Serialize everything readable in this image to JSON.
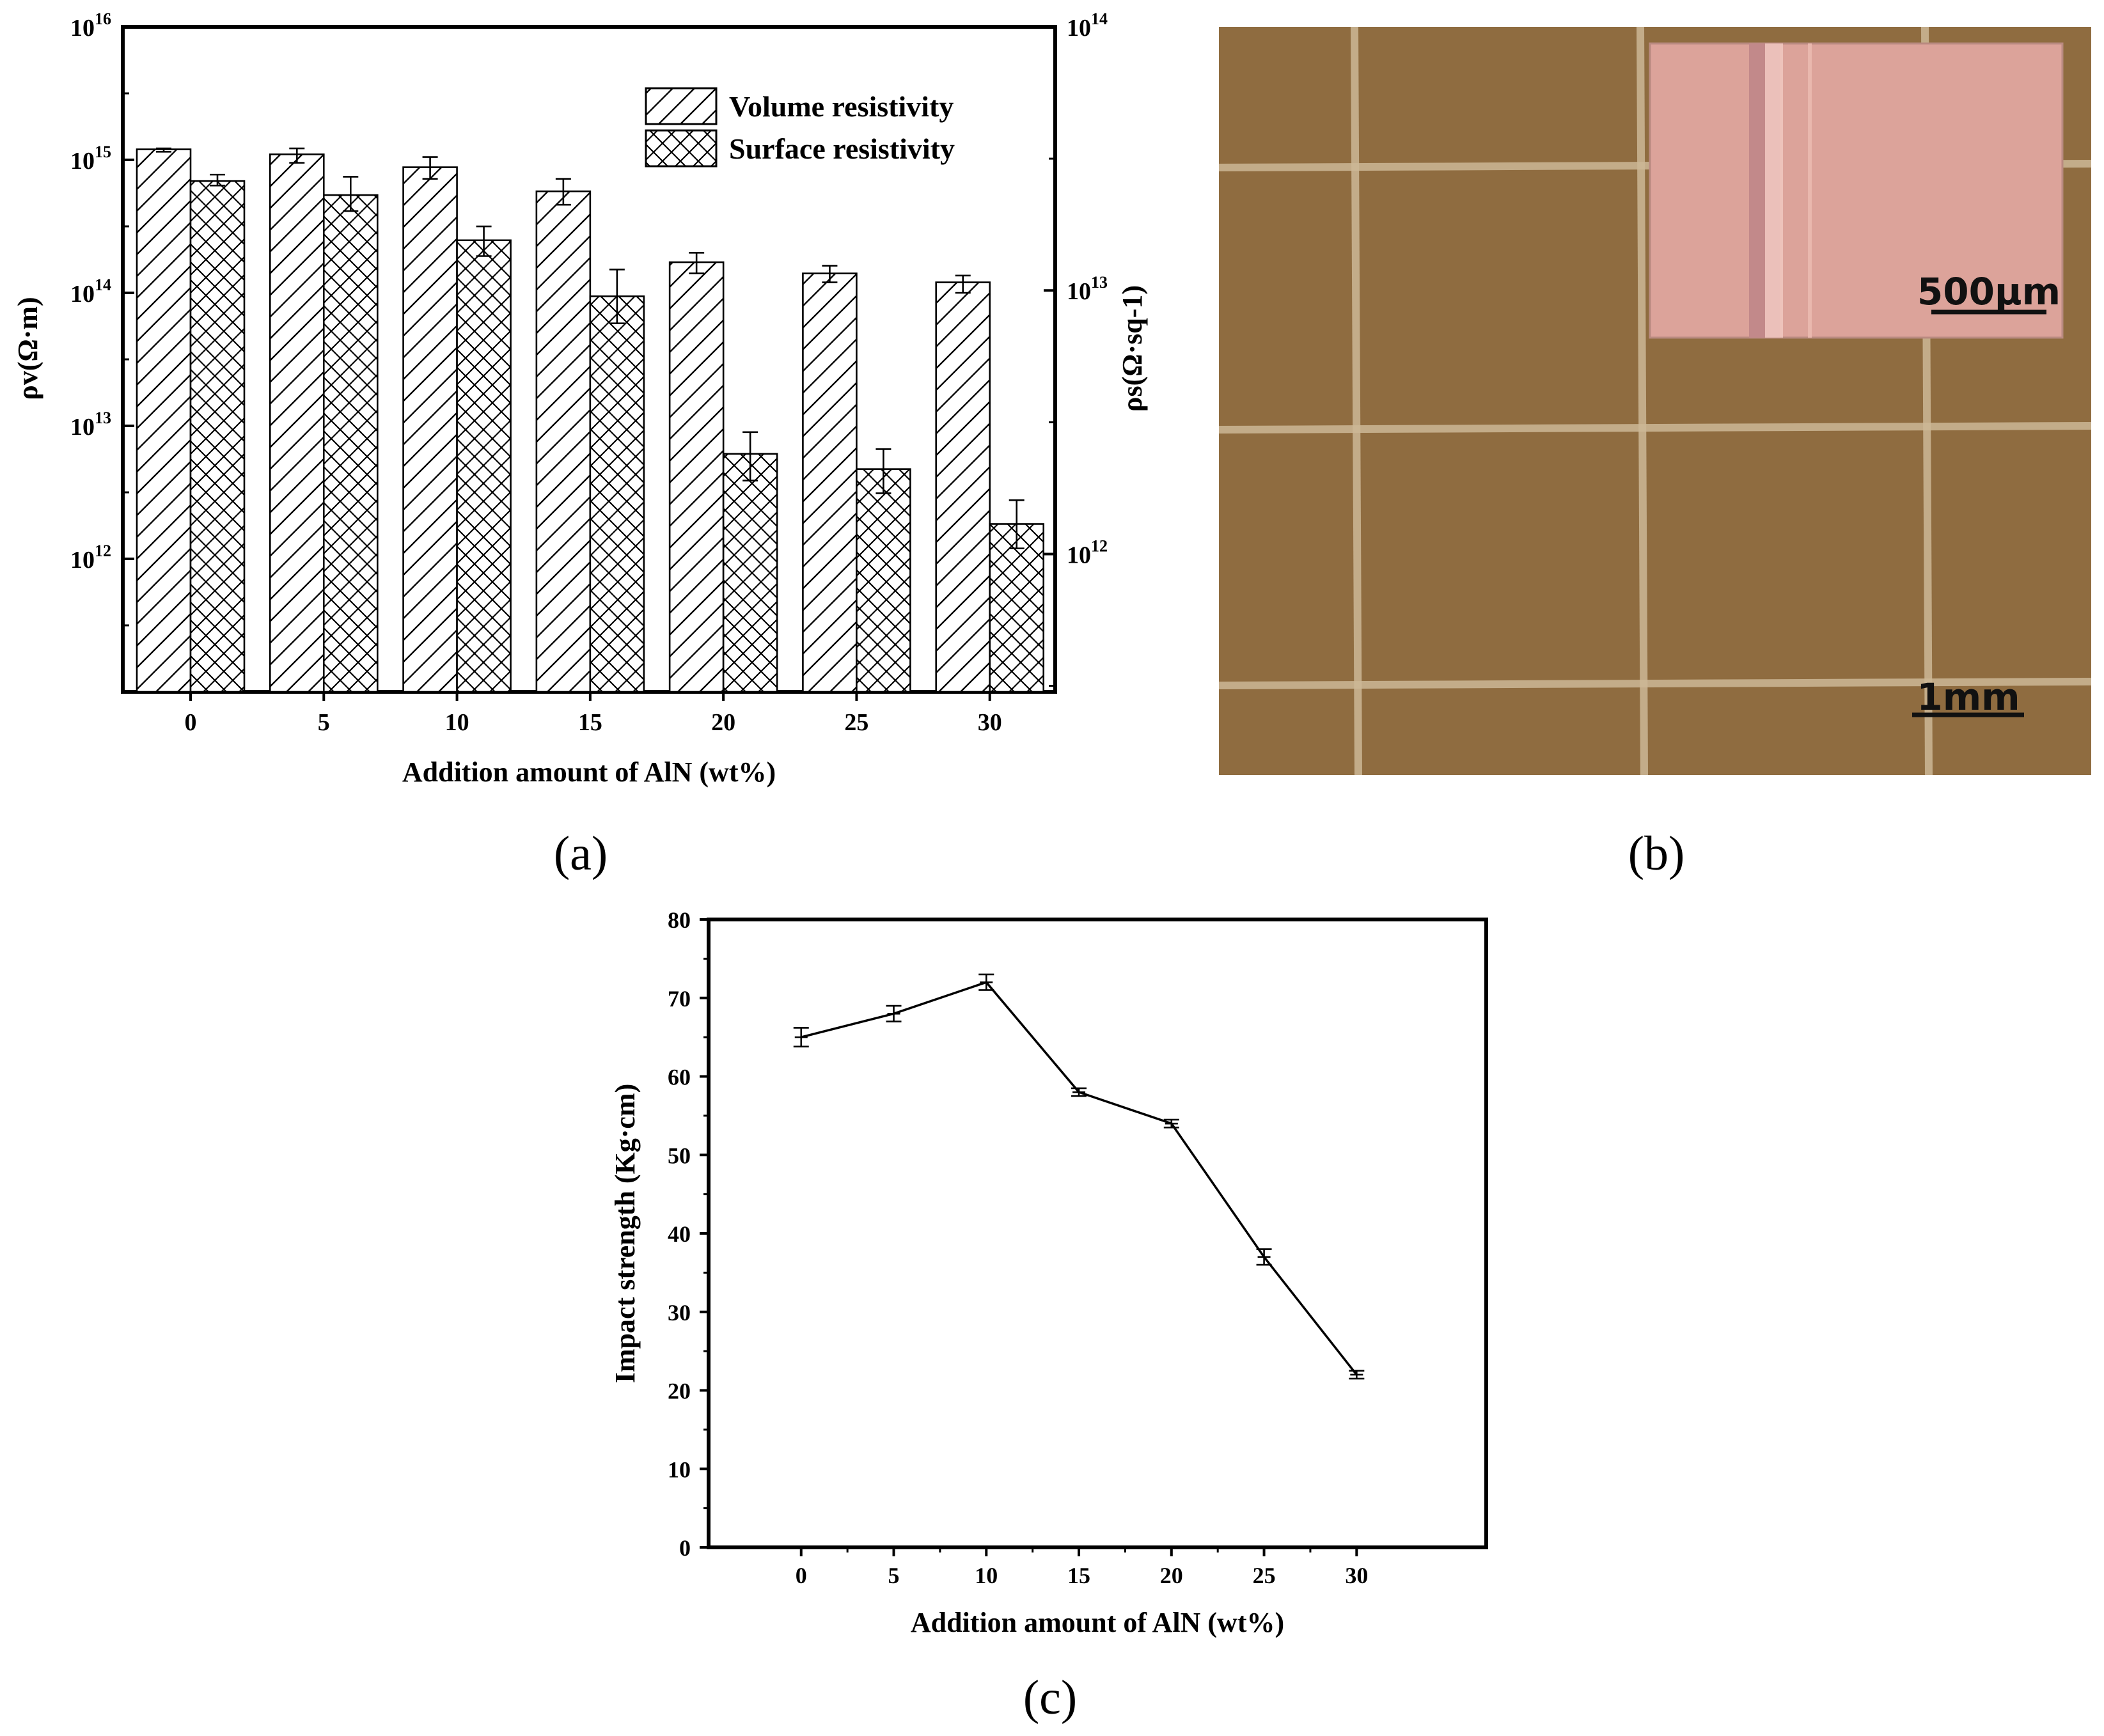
{
  "panels": {
    "a": "(a)",
    "b": "(b)",
    "c": "(c)"
  },
  "photo": {
    "scale_main": "1mm",
    "scale_inset": "500μm",
    "colors": {
      "substrate": "#8f6c40",
      "grid_line": "#cdb896",
      "inset_bg": "#dca39a"
    }
  },
  "chart_data": [
    {
      "type": "bar",
      "categories": [
        "0",
        "5",
        "10",
        "15",
        "20",
        "25",
        "30"
      ],
      "xlabel": "Addition amount of AlN (wt%)",
      "ylabel": "ρv(Ω·m)",
      "y2label": "ρs(Ω·sq-1)",
      "ylim": [
        100000000000.0,
        1e+16
      ],
      "y2lim": [
        300000000000.0,
        100000000000000.0
      ],
      "yscale": "log",
      "yticks": [
        "1012",
        "1013",
        "1014",
        "1015",
        "1016"
      ],
      "y2ticks": [
        "1012",
        "1013",
        "1014"
      ],
      "legend_placement": "top-right",
      "series": [
        {
          "name": "Volume resistivity",
          "axis": "left",
          "pattern": "diagonal-hatch",
          "values": [
            1200000000000000.0,
            1100000000000000.0,
            880000000000000.0,
            580000000000000.0,
            170000000000000.0,
            140000000000000.0,
            120000000000000.0
          ],
          "err_low": [
            1150000000000000.0,
            950000000000000.0,
            720000000000000.0,
            460000000000000.0,
            140000000000000.0,
            120000000000000.0,
            100000000000000.0
          ],
          "err_high": [
            1220000000000000.0,
            1220000000000000.0,
            1050000000000000.0,
            720000000000000.0,
            200000000000000.0,
            160000000000000.0,
            135000000000000.0
          ]
        },
        {
          "name": "Surface resistivity",
          "axis": "right",
          "pattern": "cross-hatch",
          "values": [
            26000000000000.0,
            23000000000000.0,
            15500000000000.0,
            9500000000000.0,
            2400000000000.0,
            2100000000000.0,
            1300000000000.0
          ],
          "err_low": [
            25000000000000.0,
            20000000000000.0,
            13500000000000.0,
            7500000000000.0,
            1900000000000.0,
            1700000000000.0,
            1050000000000.0
          ],
          "err_high": [
            27500000000000.0,
            27000000000000.0,
            17500000000000.0,
            12000000000000.0,
            2900000000000.0,
            2500000000000.0,
            1600000000000.0
          ]
        }
      ]
    },
    {
      "type": "line",
      "x": [
        0,
        5,
        10,
        15,
        20,
        25,
        30
      ],
      "xticks": [
        "0",
        "5",
        "10",
        "15",
        "20",
        "25",
        "30"
      ],
      "values": [
        65,
        68,
        72,
        58,
        54,
        37,
        22
      ],
      "err": [
        1.2,
        1.0,
        1.0,
        0.5,
        0.5,
        1.0,
        0.5
      ],
      "xlabel": "Addition amount of AlN (wt%)",
      "ylabel": "Impact strength (Kg·cm)",
      "ylim": [
        0,
        80
      ],
      "yticks": [
        "0",
        "10",
        "20",
        "30",
        "40",
        "50",
        "60",
        "70",
        "80"
      ],
      "xlim": [
        -5,
        37
      ]
    }
  ]
}
